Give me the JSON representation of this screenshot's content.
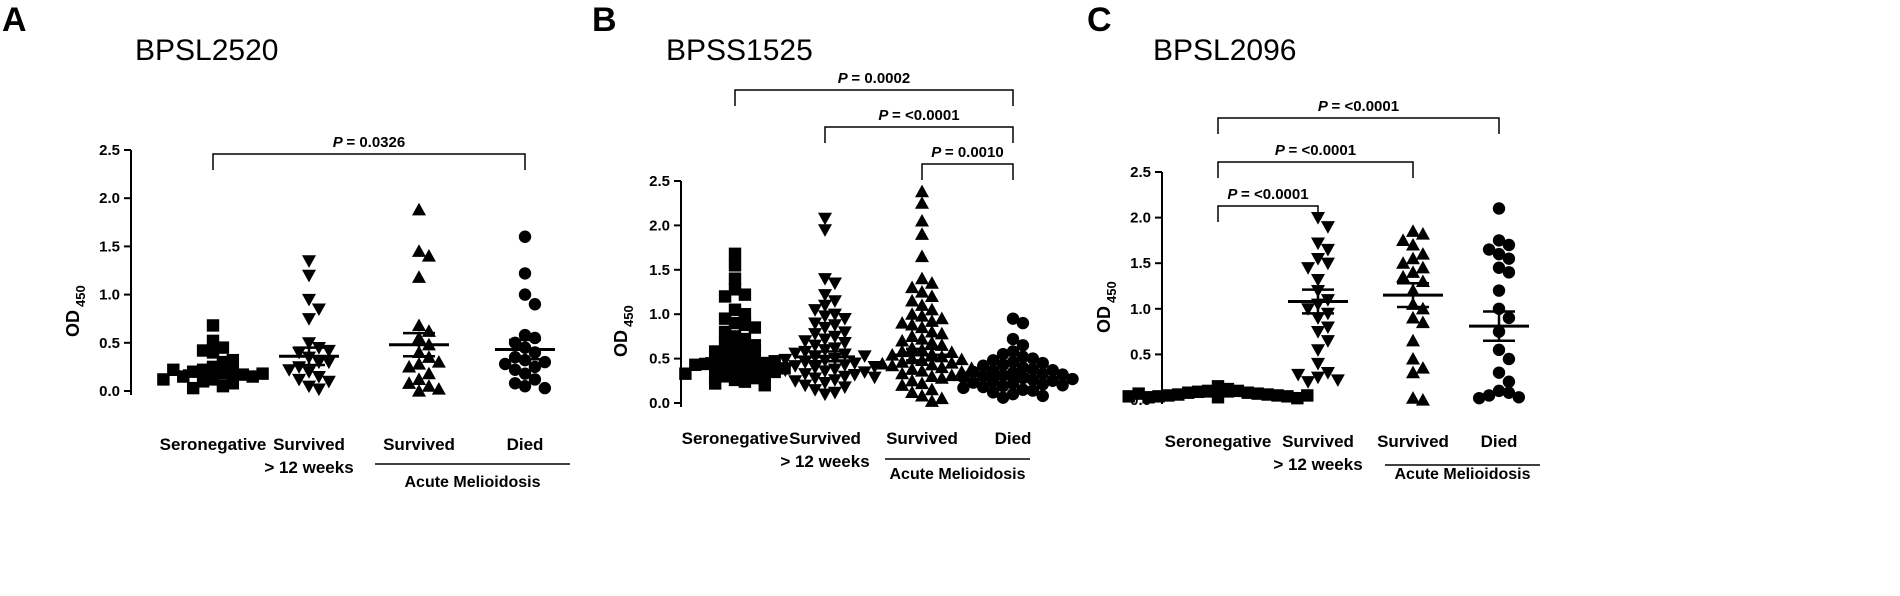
{
  "figure": {
    "ink_color": "#000000",
    "background_color": "#ffffff"
  },
  "chart_data": [
    {
      "type": "scatter",
      "panel": "A",
      "title": "BPSL2520",
      "ylabel": "OD",
      "ylabel_sub": "450",
      "xlabel": "",
      "ylim": [
        0,
        2.5
      ],
      "yticks": [
        0.0,
        0.5,
        1.0,
        1.5,
        2.0,
        2.5
      ],
      "ytick_labels": [
        "0.0",
        "0.5",
        "1.0",
        "1.5",
        "2.0",
        "2.5"
      ],
      "categories": [
        {
          "line1": "Seronegative",
          "line2": ""
        },
        {
          "line1": "Survived",
          "line2": "> 12 weeks"
        },
        {
          "line1": "Survived",
          "line2": ""
        },
        {
          "line1": "Died",
          "line2": ""
        }
      ],
      "group_label": "Acute Melioidosis",
      "group_span": [
        2,
        3
      ],
      "series": [
        {
          "name": "Seronegative",
          "marker": "square",
          "values": [
            0.68,
            0.52,
            0.45,
            0.4,
            0.42,
            0.3,
            0.32,
            0.25,
            0.22,
            0.2,
            0.2,
            0.18,
            0.17,
            0.15,
            0.12,
            0.1,
            0.08,
            0.05,
            0.03,
            0.15,
            0.22,
            0.18,
            0.12
          ],
          "mean": 0.21,
          "sem_low": 0.18,
          "sem_high": 0.24
        },
        {
          "name": "Survived > 12 weeks",
          "marker": "triangle-down",
          "values": [
            1.35,
            1.2,
            0.95,
            0.85,
            0.75,
            0.5,
            0.45,
            0.4,
            0.35,
            0.3,
            0.25,
            0.2,
            0.15,
            0.12,
            0.1,
            0.05,
            0.02,
            0.3,
            0.42,
            0.22
          ],
          "mean": 0.36,
          "sem_low": 0.27,
          "sem_high": 0.45
        },
        {
          "name": "Survived",
          "marker": "triangle-up",
          "values": [
            1.88,
            1.45,
            1.4,
            1.18,
            0.68,
            0.62,
            0.55,
            0.48,
            0.4,
            0.35,
            0.28,
            0.25,
            0.18,
            0.12,
            0.08,
            0.05,
            0.02,
            0.0,
            0.3
          ],
          "mean": 0.48,
          "sem_low": 0.36,
          "sem_high": 0.6
        },
        {
          "name": "Died",
          "marker": "circle",
          "values": [
            1.6,
            1.22,
            1.0,
            0.9,
            0.58,
            0.55,
            0.5,
            0.45,
            0.4,
            0.35,
            0.32,
            0.3,
            0.25,
            0.22,
            0.18,
            0.12,
            0.08,
            0.05,
            0.03,
            0.28
          ],
          "mean": 0.43,
          "sem_low": 0.33,
          "sem_high": 0.53
        }
      ],
      "comparisons": [
        {
          "from": 0,
          "to": 3,
          "label": "= 0.0326",
          "level": 0
        }
      ]
    },
    {
      "type": "scatter",
      "panel": "B",
      "title": "BPSS1525",
      "ylabel": "OD",
      "ylabel_sub": "450",
      "xlabel": "",
      "ylim": [
        0,
        2.5
      ],
      "yticks": [
        0.0,
        0.5,
        1.0,
        1.5,
        2.0,
        2.5
      ],
      "ytick_labels": [
        "0.0",
        "0.5",
        "1.0",
        "1.5",
        "2.0",
        "2.5"
      ],
      "categories": [
        {
          "line1": "Seronegative",
          "line2": ""
        },
        {
          "line1": "Survived",
          "line2": "> 12 weeks"
        },
        {
          "line1": "Survived",
          "line2": ""
        },
        {
          "line1": "Died",
          "line2": ""
        }
      ],
      "group_label": "Acute Melioidosis",
      "group_span": [
        2,
        3
      ],
      "series": [
        {
          "name": "Seronegative",
          "marker": "square",
          "values": [
            1.68,
            1.55,
            1.4,
            1.28,
            1.22,
            1.2,
            1.05,
            1.0,
            0.95,
            0.9,
            0.88,
            0.85,
            0.8,
            0.75,
            0.72,
            0.68,
            0.65,
            0.62,
            0.6,
            0.58,
            0.55,
            0.52,
            0.5,
            0.48,
            0.46,
            0.45,
            0.44,
            0.42,
            0.4,
            0.38,
            0.36,
            0.35,
            0.34,
            0.32,
            0.3,
            0.28,
            0.26,
            0.24,
            0.22,
            0.2,
            0.47,
            0.43,
            0.39,
            0.33
          ],
          "mean": 0.5,
          "sem_low": 0.44,
          "sem_high": 0.56
        },
        {
          "name": "Survived > 12 weeks",
          "marker": "triangle-down",
          "values": [
            2.08,
            1.95,
            1.4,
            1.35,
            1.22,
            1.15,
            1.1,
            1.05,
            1.0,
            0.98,
            0.95,
            0.9,
            0.88,
            0.85,
            0.8,
            0.78,
            0.75,
            0.72,
            0.7,
            0.68,
            0.65,
            0.62,
            0.6,
            0.58,
            0.55,
            0.52,
            0.5,
            0.48,
            0.46,
            0.45,
            0.43,
            0.42,
            0.4,
            0.38,
            0.36,
            0.35,
            0.33,
            0.32,
            0.3,
            0.28,
            0.26,
            0.25,
            0.23,
            0.2,
            0.18,
            0.15,
            0.12,
            0.1,
            0.56,
            0.53,
            0.49,
            0.41,
            0.37,
            0.29
          ],
          "mean": 0.52,
          "sem_low": 0.47,
          "sem_high": 0.58
        },
        {
          "name": "Survived",
          "marker": "triangle-up",
          "values": [
            2.38,
            2.25,
            2.05,
            1.9,
            1.65,
            1.4,
            1.35,
            1.3,
            1.25,
            1.2,
            1.15,
            1.1,
            1.05,
            1.0,
            0.98,
            0.95,
            0.92,
            0.9,
            0.88,
            0.85,
            0.8,
            0.78,
            0.75,
            0.72,
            0.7,
            0.68,
            0.65,
            0.62,
            0.6,
            0.58,
            0.55,
            0.52,
            0.5,
            0.48,
            0.46,
            0.45,
            0.43,
            0.42,
            0.4,
            0.38,
            0.36,
            0.35,
            0.33,
            0.3,
            0.28,
            0.25,
            0.22,
            0.2,
            0.15,
            0.12,
            0.08,
            0.05,
            0.02,
            0.57,
            0.54,
            0.49,
            0.44,
            0.39,
            0.31
          ],
          "mean": 0.54,
          "sem_low": 0.48,
          "sem_high": 0.61
        },
        {
          "name": "Died",
          "marker": "circle",
          "values": [
            0.95,
            0.9,
            0.72,
            0.65,
            0.58,
            0.55,
            0.52,
            0.5,
            0.48,
            0.46,
            0.45,
            0.43,
            0.42,
            0.4,
            0.38,
            0.37,
            0.36,
            0.35,
            0.34,
            0.33,
            0.32,
            0.31,
            0.3,
            0.29,
            0.28,
            0.27,
            0.26,
            0.25,
            0.24,
            0.23,
            0.22,
            0.21,
            0.2,
            0.19,
            0.18,
            0.17,
            0.15,
            0.14,
            0.12,
            0.1,
            0.08,
            0.06
          ],
          "mean": 0.3,
          "sem_low": 0.27,
          "sem_high": 0.33
        }
      ],
      "comparisons": [
        {
          "from": 0,
          "to": 3,
          "label": "= 0.0002",
          "level": 2
        },
        {
          "from": 1,
          "to": 3,
          "label": "= <0.0001",
          "level": 1
        },
        {
          "from": 2,
          "to": 3,
          "label": "= 0.0010",
          "level": 0
        }
      ]
    },
    {
      "type": "scatter",
      "panel": "C",
      "title": "BPSL2096",
      "ylabel": "OD",
      "ylabel_sub": "450",
      "xlabel": "",
      "ylim": [
        0,
        2.5
      ],
      "yticks": [
        0.0,
        0.5,
        1.0,
        1.5,
        2.0,
        2.5
      ],
      "ytick_labels": [
        "0.0",
        "0.5",
        "1.0",
        "1.5",
        "2.0",
        "2.5"
      ],
      "categories": [
        {
          "line1": "Seronegative",
          "line2": ""
        },
        {
          "line1": "Survived",
          "line2": "> 12 weeks"
        },
        {
          "line1": "Survived",
          "line2": ""
        },
        {
          "line1": "Died",
          "line2": ""
        }
      ],
      "group_label": "Acute Melioidosis",
      "group_span": [
        2,
        3
      ],
      "series": [
        {
          "name": "Seronegative",
          "marker": "square",
          "values": [
            0.15,
            0.12,
            0.1,
            0.1,
            0.09,
            0.08,
            0.08,
            0.07,
            0.06,
            0.06,
            0.05,
            0.05,
            0.04,
            0.04,
            0.03,
            0.03,
            0.02,
            0.07,
            0.05,
            0.04
          ],
          "mean": 0.05,
          "sem_low": 0.04,
          "sem_high": 0.06
        },
        {
          "name": "Survived > 12 weeks",
          "marker": "triangle-down",
          "values": [
            2.0,
            1.9,
            1.72,
            1.65,
            1.55,
            1.5,
            1.45,
            1.32,
            1.2,
            1.1,
            1.05,
            1.0,
            0.95,
            0.9,
            0.8,
            0.75,
            0.65,
            0.55,
            0.4,
            0.3,
            0.25,
            0.2,
            0.22,
            0.28
          ],
          "mean": 1.08,
          "sem_low": 0.95,
          "sem_high": 1.21
        },
        {
          "name": "Survived",
          "marker": "triangle-up",
          "values": [
            1.85,
            1.82,
            1.75,
            1.7,
            1.6,
            1.55,
            1.5,
            1.45,
            1.4,
            1.35,
            1.3,
            1.2,
            1.05,
            1.0,
            0.9,
            0.85,
            0.65,
            0.45,
            0.35,
            0.3,
            0.02,
            0.0
          ],
          "mean": 1.15,
          "sem_low": 1.02,
          "sem_high": 1.28
        },
        {
          "name": "Died",
          "marker": "circle",
          "values": [
            2.1,
            1.75,
            1.7,
            1.65,
            1.6,
            1.55,
            1.45,
            1.4,
            1.2,
            1.0,
            0.9,
            0.75,
            0.55,
            0.45,
            0.3,
            0.2,
            0.1,
            0.08,
            0.05,
            0.03,
            0.02
          ],
          "mean": 0.81,
          "sem_low": 0.65,
          "sem_high": 0.97
        }
      ],
      "comparisons": [
        {
          "from": 0,
          "to": 1,
          "label": "= <0.0001",
          "level": 0
        },
        {
          "from": 0,
          "to": 2,
          "label": "= <0.0001",
          "level": 1
        },
        {
          "from": 0,
          "to": 3,
          "label": "= <0.0001",
          "level": 2
        }
      ]
    }
  ],
  "p_symbol": "P"
}
